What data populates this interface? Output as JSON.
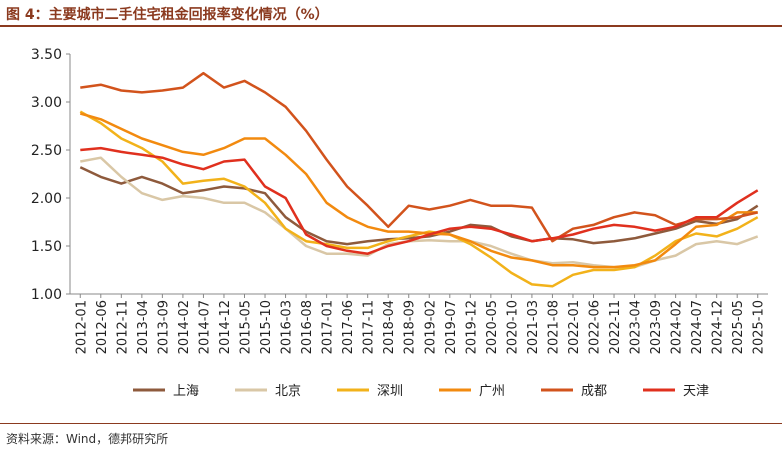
{
  "figure": {
    "title": "图 4：主要城市二手住宅租金回报率变化情况（%）",
    "source": "资料来源：Wind，德邦研究所"
  },
  "colors": {
    "accent": "#8B3A1F",
    "axis": "#888888"
  },
  "chart_data": {
    "type": "line",
    "title": "",
    "xlabel": "",
    "ylabel": "",
    "ylim": [
      1.0,
      3.5
    ],
    "yticks": [
      "1.00",
      "1.50",
      "2.00",
      "2.50",
      "3.00",
      "3.50"
    ],
    "grid": false,
    "legend_position": "bottom",
    "xticks": [
      "2012-01",
      "2012-06",
      "2012-11",
      "2013-04",
      "2013-09",
      "2014-02",
      "2014-07",
      "2014-12",
      "2015-05",
      "2015-10",
      "2016-03",
      "2016-08",
      "2017-01",
      "2017-06",
      "2017-11",
      "2018-04",
      "2018-09",
      "2019-02",
      "2019-07",
      "2019-12",
      "2020-05",
      "2020-10",
      "2021-03",
      "2021-08",
      "2022-01",
      "2022-06",
      "2022-11",
      "2023-04",
      "2023-09",
      "2024-02",
      "2024-07",
      "2024-12",
      "2025-05",
      "2025-10"
    ],
    "series": [
      {
        "name": "上海",
        "color": "#8E5A3C",
        "values": [
          2.32,
          2.22,
          2.15,
          2.22,
          2.15,
          2.05,
          2.08,
          2.12,
          2.1,
          2.05,
          1.8,
          1.65,
          1.55,
          1.52,
          1.55,
          1.57,
          1.58,
          1.6,
          1.65,
          1.72,
          1.7,
          1.6,
          1.55,
          1.58,
          1.57,
          1.53,
          1.55,
          1.58,
          1.63,
          1.68,
          1.76,
          1.73,
          1.78,
          1.92
        ]
      },
      {
        "name": "北京",
        "color": "#D9C7A6",
        "values": [
          2.38,
          2.42,
          2.22,
          2.05,
          1.98,
          2.02,
          2.0,
          1.95,
          1.95,
          1.85,
          1.68,
          1.5,
          1.42,
          1.42,
          1.4,
          1.52,
          1.55,
          1.56,
          1.55,
          1.55,
          1.5,
          1.42,
          1.35,
          1.32,
          1.33,
          1.3,
          1.28,
          1.28,
          1.35,
          1.4,
          1.52,
          1.55,
          1.52,
          1.6
        ]
      },
      {
        "name": "深圳",
        "color": "#F2B21A",
        "values": [
          2.9,
          2.78,
          2.62,
          2.52,
          2.38,
          2.15,
          2.18,
          2.2,
          2.12,
          1.95,
          1.68,
          1.55,
          1.52,
          1.48,
          1.48,
          1.55,
          1.6,
          1.65,
          1.62,
          1.52,
          1.38,
          1.22,
          1.1,
          1.08,
          1.2,
          1.25,
          1.25,
          1.28,
          1.4,
          1.55,
          1.63,
          1.6,
          1.68,
          1.8
        ]
      },
      {
        "name": "广州",
        "color": "#F28A0F",
        "values": [
          2.88,
          2.82,
          2.72,
          2.62,
          2.55,
          2.48,
          2.45,
          2.52,
          2.62,
          2.62,
          2.45,
          2.25,
          1.95,
          1.8,
          1.7,
          1.65,
          1.65,
          1.63,
          1.62,
          1.55,
          1.45,
          1.38,
          1.35,
          1.3,
          1.3,
          1.28,
          1.28,
          1.3,
          1.35,
          1.52,
          1.7,
          1.72,
          1.85,
          1.85
        ]
      },
      {
        "name": "成都",
        "color": "#D2531C",
        "values": [
          3.15,
          3.18,
          3.12,
          3.1,
          3.12,
          3.15,
          3.3,
          3.15,
          3.22,
          3.1,
          2.95,
          2.7,
          2.4,
          2.12,
          1.92,
          1.7,
          1.92,
          1.88,
          1.92,
          1.98,
          1.92,
          1.92,
          1.9,
          1.55,
          1.68,
          1.72,
          1.8,
          1.85,
          1.82,
          1.72,
          1.78,
          1.78,
          1.8,
          1.85
        ]
      },
      {
        "name": "天津",
        "color": "#E0301E",
        "values": [
          2.5,
          2.52,
          2.48,
          2.45,
          2.42,
          2.35,
          2.3,
          2.38,
          2.4,
          2.12,
          2.0,
          1.62,
          1.5,
          1.45,
          1.42,
          1.5,
          1.55,
          1.62,
          1.68,
          1.7,
          1.68,
          1.62,
          1.55,
          1.58,
          1.62,
          1.68,
          1.72,
          1.7,
          1.66,
          1.7,
          1.8,
          1.8,
          1.95,
          2.08
        ]
      }
    ]
  }
}
